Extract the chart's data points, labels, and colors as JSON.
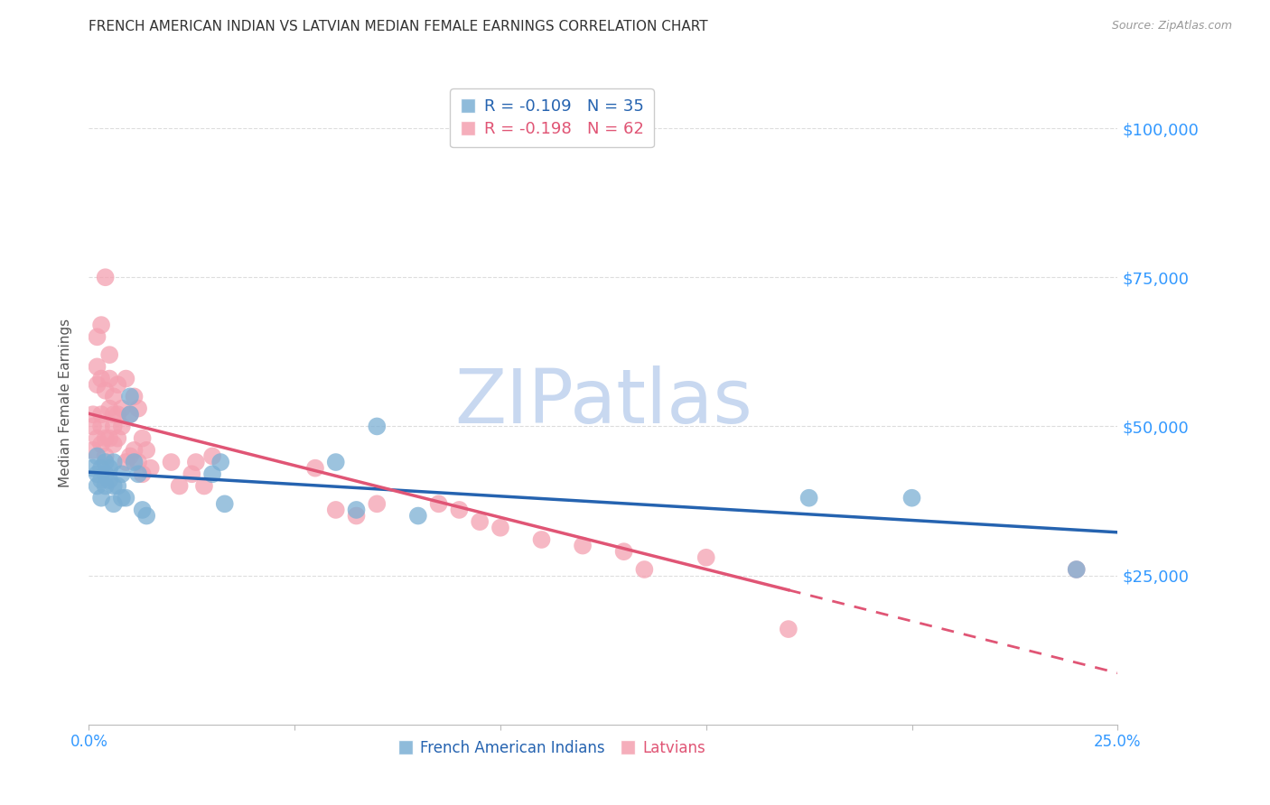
{
  "title": "FRENCH AMERICAN INDIAN VS LATVIAN MEDIAN FEMALE EARNINGS CORRELATION CHART",
  "source": "Source: ZipAtlas.com",
  "ylabel_label": "Median Female Earnings",
  "xlim": [
    0.0,
    0.25
  ],
  "ylim": [
    0,
    108000
  ],
  "yticks": [
    25000,
    50000,
    75000,
    100000
  ],
  "ytick_labels": [
    "$25,000",
    "$50,000",
    "$75,000",
    "$100,000"
  ],
  "xticks": [
    0.0,
    0.05,
    0.1,
    0.15,
    0.2,
    0.25
  ],
  "xtick_labels": [
    "0.0%",
    "",
    "",
    "",
    "",
    "25.0%"
  ],
  "background_color": "#ffffff",
  "grid_color": "#dddddd",
  "blue_color": "#7bafd4",
  "pink_color": "#f4a0b0",
  "blue_line_color": "#2563b0",
  "pink_line_color": "#e05575",
  "right_tick_color": "#3399ff",
  "watermark_color": "#c8d8f0",
  "legend_R_blue": "R = -0.109",
  "legend_N_blue": "N = 35",
  "legend_R_pink": "R = -0.198",
  "legend_N_pink": "N = 62",
  "legend_label_blue": "French American Indians",
  "legend_label_pink": "Latvians",
  "french_x": [
    0.001,
    0.002,
    0.002,
    0.002,
    0.003,
    0.003,
    0.003,
    0.004,
    0.004,
    0.004,
    0.005,
    0.005,
    0.006,
    0.006,
    0.006,
    0.007,
    0.008,
    0.008,
    0.009,
    0.01,
    0.01,
    0.011,
    0.012,
    0.013,
    0.014,
    0.03,
    0.032,
    0.033,
    0.06,
    0.065,
    0.07,
    0.08,
    0.175,
    0.2,
    0.24
  ],
  "french_y": [
    43000,
    45000,
    42000,
    40000,
    43000,
    41000,
    38000,
    44000,
    42000,
    40000,
    43000,
    41000,
    44000,
    40000,
    37000,
    40000,
    42000,
    38000,
    38000,
    55000,
    52000,
    44000,
    42000,
    36000,
    35000,
    42000,
    44000,
    37000,
    44000,
    36000,
    50000,
    35000,
    38000,
    38000,
    26000
  ],
  "latvian_x": [
    0.001,
    0.001,
    0.001,
    0.002,
    0.002,
    0.002,
    0.002,
    0.003,
    0.003,
    0.003,
    0.003,
    0.003,
    0.004,
    0.004,
    0.004,
    0.004,
    0.005,
    0.005,
    0.005,
    0.005,
    0.006,
    0.006,
    0.006,
    0.006,
    0.007,
    0.007,
    0.007,
    0.008,
    0.008,
    0.009,
    0.009,
    0.01,
    0.01,
    0.011,
    0.011,
    0.012,
    0.012,
    0.013,
    0.013,
    0.014,
    0.015,
    0.02,
    0.022,
    0.025,
    0.026,
    0.028,
    0.03,
    0.055,
    0.06,
    0.065,
    0.07,
    0.085,
    0.09,
    0.095,
    0.1,
    0.11,
    0.12,
    0.13,
    0.135,
    0.15,
    0.17,
    0.24
  ],
  "latvian_y": [
    50000,
    46000,
    52000,
    60000,
    57000,
    65000,
    48000,
    67000,
    52000,
    58000,
    47000,
    50000,
    75000,
    56000,
    48000,
    45000,
    62000,
    58000,
    53000,
    48000,
    55000,
    52000,
    50000,
    47000,
    57000,
    52000,
    48000,
    53000,
    50000,
    58000,
    44000,
    52000,
    45000,
    55000,
    46000,
    53000,
    44000,
    48000,
    42000,
    46000,
    43000,
    44000,
    40000,
    42000,
    44000,
    40000,
    45000,
    43000,
    36000,
    35000,
    37000,
    37000,
    36000,
    34000,
    33000,
    31000,
    30000,
    29000,
    26000,
    28000,
    16000,
    26000
  ]
}
